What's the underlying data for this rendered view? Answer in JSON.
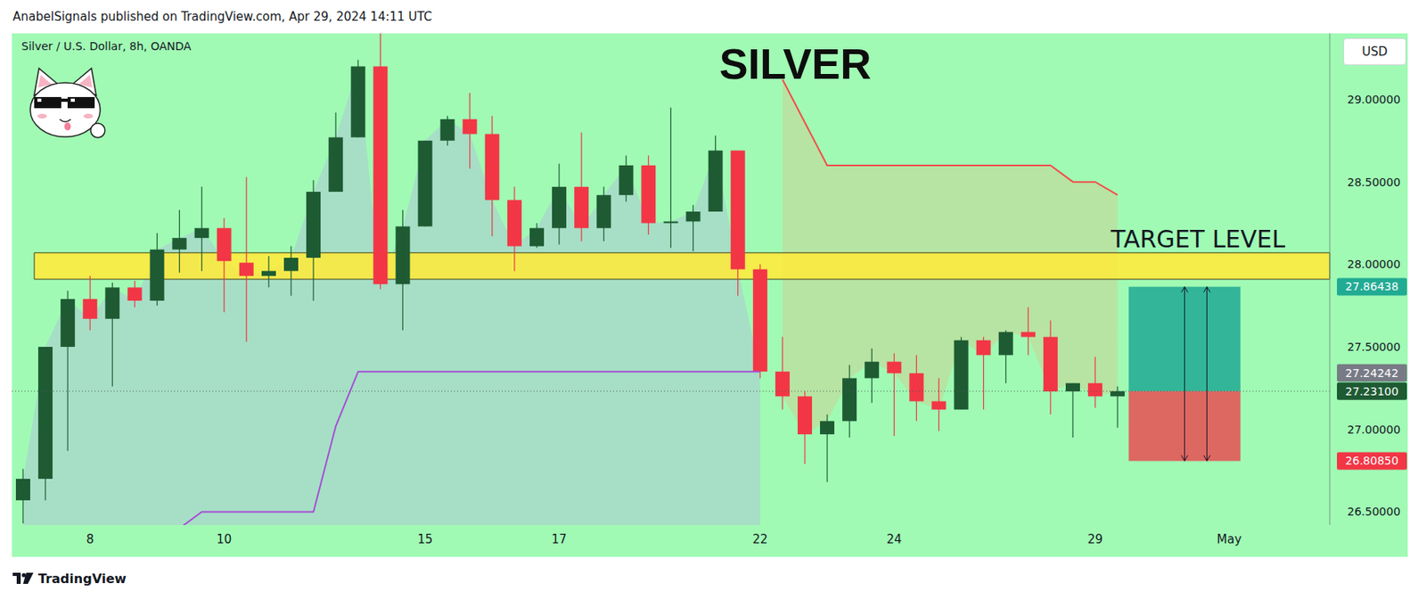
{
  "page": {
    "header": "AnabelSignals published on TradingView.com, Apr 29, 2024 14:11 UTC",
    "footer": "TradingView",
    "currency": "USD"
  },
  "chart_data": {
    "type": "candlestick",
    "title": "SILVER",
    "subtitle": "Silver / U.S. Dollar, 8h, OANDA",
    "categories": [
      null,
      null,
      null,
      "8",
      null,
      null,
      null,
      null,
      null,
      "10",
      null,
      null,
      null,
      null,
      null,
      null,
      null,
      null,
      "15",
      null,
      null,
      null,
      null,
      null,
      "17",
      null,
      null,
      null,
      null,
      null,
      null,
      null,
      null,
      "22",
      null,
      null,
      null,
      null,
      null,
      "24",
      null,
      null,
      null,
      null,
      null,
      null,
      null,
      null,
      "29",
      null,
      null,
      null,
      null,
      null,
      "May",
      null,
      null,
      null,
      null
    ],
    "open": [
      26.57,
      26.7,
      27.5,
      27.79,
      27.67,
      27.86,
      27.78,
      28.09,
      28.16,
      28.22,
      28.01,
      27.93,
      27.96,
      28.04,
      28.44,
      28.77,
      29.2,
      27.88,
      28.23,
      28.75,
      28.88,
      28.79,
      28.39,
      28.11,
      28.22,
      28.47,
      28.22,
      28.42,
      28.6,
      28.25,
      28.26,
      28.32,
      28.69,
      27.97,
      27.35,
      27.2,
      26.97,
      27.05,
      27.31,
      27.41,
      27.34,
      27.17,
      27.12,
      27.54,
      27.45,
      27.59,
      27.56,
      27.23,
      27.28,
      27.2,
      null,
      null,
      null,
      null,
      null,
      null,
      null,
      null,
      null
    ],
    "high": [
      26.76,
      27.5,
      27.84,
      27.93,
      27.89,
      27.9,
      28.19,
      28.33,
      28.47,
      28.28,
      28.53,
      28.05,
      28.11,
      28.51,
      28.92,
      29.24,
      29.4,
      28.33,
      28.75,
      28.9,
      29.04,
      28.9,
      28.47,
      28.25,
      28.61,
      28.8,
      28.47,
      28.66,
      28.66,
      28.95,
      28.36,
      28.78,
      28.69,
      28.0,
      27.56,
      27.23,
      27.09,
      27.39,
      27.49,
      27.46,
      27.45,
      27.31,
      27.56,
      27.56,
      27.6,
      27.74,
      27.66,
      27.28,
      27.44,
      27.26,
      null,
      null,
      null,
      null,
      null,
      null,
      null,
      null,
      null
    ],
    "low": [
      26.43,
      26.57,
      26.87,
      27.6,
      27.26,
      27.74,
      27.75,
      27.95,
      27.96,
      27.71,
      27.53,
      27.86,
      27.81,
      27.78,
      28.44,
      28.77,
      27.85,
      27.6,
      28.23,
      28.72,
      28.58,
      28.17,
      27.96,
      28.1,
      28.12,
      28.14,
      28.14,
      28.38,
      28.18,
      28.1,
      28.08,
      28.32,
      27.81,
      27.31,
      27.12,
      26.79,
      26.68,
      26.95,
      27.16,
      26.96,
      27.05,
      26.99,
      27.12,
      27.12,
      27.28,
      27.45,
      27.09,
      26.95,
      27.13,
      27.01,
      null,
      null,
      null,
      null,
      null,
      null,
      null,
      null,
      null
    ],
    "close": [
      26.7,
      27.5,
      27.79,
      27.67,
      27.86,
      27.78,
      28.09,
      28.16,
      28.22,
      28.02,
      27.93,
      27.96,
      28.04,
      28.44,
      28.77,
      29.2,
      27.88,
      28.23,
      28.75,
      28.88,
      28.79,
      28.39,
      28.11,
      28.22,
      28.47,
      28.22,
      28.42,
      28.6,
      28.25,
      28.26,
      28.32,
      28.69,
      27.97,
      27.35,
      27.2,
      26.97,
      27.05,
      27.31,
      27.41,
      27.34,
      27.17,
      27.12,
      27.54,
      27.45,
      27.59,
      27.56,
      27.23,
      27.28,
      27.2,
      27.231,
      null,
      null,
      null,
      null,
      null,
      null,
      null,
      null,
      null
    ],
    "ylim": [
      26.42,
      29.4
    ],
    "yticks": [
      {
        "value": 26.5,
        "label": "26.50000"
      },
      {
        "value": 27,
        "label": "27.00000"
      },
      {
        "value": 27.5,
        "label": "27.50000"
      },
      {
        "value": 28,
        "label": "28.00000"
      },
      {
        "value": 28.5,
        "label": "28.50000"
      },
      {
        "value": 29,
        "label": "29.00000"
      }
    ],
    "lines": [
      {
        "color": "#f44b4b",
        "values": [
          null,
          null,
          null,
          null,
          null,
          null,
          null,
          null,
          null,
          null,
          null,
          null,
          null,
          null,
          null,
          null,
          null,
          null,
          null,
          null,
          null,
          null,
          null,
          null,
          null,
          null,
          null,
          null,
          null,
          null,
          null,
          null,
          null,
          null,
          29.12,
          28.86,
          28.6,
          28.6,
          28.6,
          28.6,
          28.6,
          28.6,
          28.6,
          28.6,
          28.6,
          28.6,
          28.6,
          28.5,
          28.5,
          28.42,
          null,
          null,
          null,
          null,
          null,
          null,
          null,
          null,
          null
        ]
      },
      {
        "color": "#a64fd3",
        "values": [
          null,
          null,
          null,
          null,
          null,
          null,
          null,
          26.4,
          26.5,
          26.5,
          26.5,
          26.5,
          26.5,
          26.5,
          27.02,
          27.35,
          27.35,
          27.35,
          27.35,
          27.35,
          27.35,
          27.35,
          27.35,
          27.35,
          27.35,
          27.35,
          27.35,
          27.35,
          27.35,
          27.35,
          27.35,
          27.35,
          27.35,
          27.35,
          null,
          null,
          null,
          null,
          null,
          null,
          null,
          null,
          null,
          null,
          null,
          null,
          null,
          null,
          null,
          null,
          null,
          null,
          null,
          null,
          null,
          null,
          null,
          null,
          null
        ]
      }
    ],
    "annotations": [
      {
        "text": "TARGET LEVEL",
        "y_range": [
          27.91,
          28.07
        ],
        "color": "#ffeb3b"
      }
    ],
    "position": {
      "target": 27.86438,
      "entry": 27.231,
      "stop": 26.8085
    },
    "price_labels": [
      {
        "value": 27.86438,
        "label": "27.86438",
        "color": "#22ab94"
      },
      {
        "value": 27.24242,
        "label": "27.24242",
        "color": "#787b86"
      },
      {
        "value": 27.231,
        "label": "27.23100",
        "color": "#1e5b33",
        "line_style": "dotted"
      },
      {
        "value": 26.8085,
        "label": "26.80850",
        "color": "#f23645"
      }
    ],
    "grid": false
  }
}
